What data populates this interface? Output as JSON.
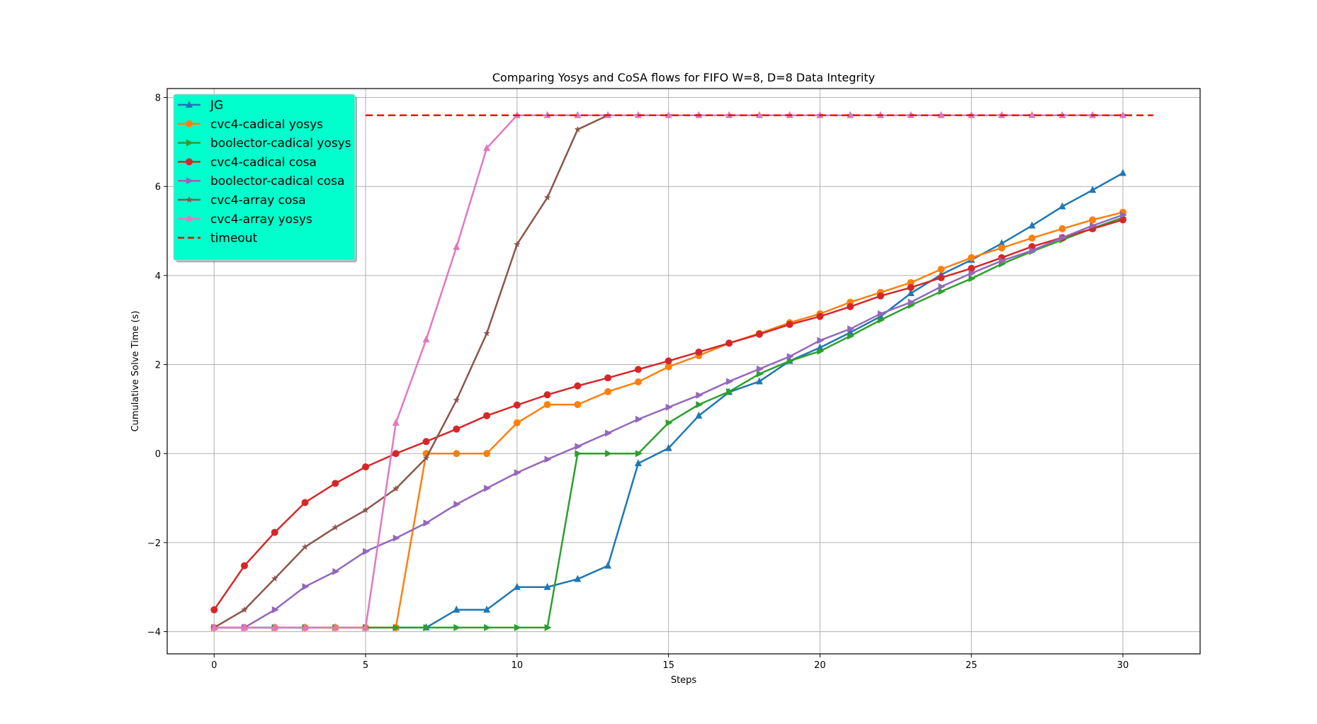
{
  "chart_data": {
    "type": "line",
    "title": "Comparing Yosys and CoSA flows for FIFO W=8, D=8 Data Integrity",
    "xlabel": "Steps",
    "ylabel": "Cumulative Solve Time (s)",
    "xlim": [
      -1.55,
      32.55
    ],
    "ylim": [
      -4.5,
      8.2
    ],
    "xticks": [
      0,
      5,
      10,
      15,
      20,
      25,
      30
    ],
    "yticks": [
      -4,
      -2,
      0,
      2,
      4,
      6,
      8
    ],
    "xtick_labels": [
      "0",
      "5",
      "10",
      "15",
      "20",
      "25",
      "30"
    ],
    "ytick_labels": [
      "−4",
      "−2",
      "0",
      "2",
      "4",
      "6",
      "8"
    ],
    "grid": true,
    "legend_position": "upper-left",
    "legend_background": "#00ffcc",
    "series": [
      {
        "name": "JG",
        "color": "#1f77b4",
        "marker": "triangle-up",
        "x": [
          0,
          1,
          2,
          3,
          4,
          5,
          6,
          7,
          8,
          9,
          10,
          11,
          12,
          13,
          14,
          15,
          16,
          17,
          18,
          19,
          20,
          21,
          22,
          23,
          24,
          25,
          26,
          27,
          28,
          29,
          30
        ],
        "values": [
          -3.91,
          -3.91,
          -3.91,
          -3.91,
          -3.91,
          -3.91,
          -3.91,
          -3.91,
          -3.51,
          -3.51,
          -3.0,
          -3.0,
          -2.82,
          -2.52,
          -0.22,
          0.12,
          0.85,
          1.38,
          1.62,
          2.08,
          2.38,
          2.72,
          3.08,
          3.6,
          4.02,
          4.35,
          4.72,
          5.12,
          5.55,
          5.92,
          6.3
        ]
      },
      {
        "name": "cvc4-cadical yosys",
        "color": "#ff7f0e",
        "marker": "circle",
        "x": [
          0,
          1,
          2,
          3,
          4,
          5,
          6,
          7,
          8,
          9,
          10,
          11,
          12,
          13,
          14,
          15,
          16,
          17,
          18,
          19,
          20,
          21,
          22,
          23,
          24,
          25,
          26,
          27,
          28,
          29,
          30
        ],
        "values": [
          -3.91,
          -3.91,
          -3.91,
          -3.91,
          -3.91,
          -3.91,
          -3.91,
          0.0,
          0.0,
          0.0,
          0.69,
          1.1,
          1.1,
          1.39,
          1.61,
          1.95,
          2.2,
          2.48,
          2.7,
          2.94,
          3.14,
          3.4,
          3.62,
          3.84,
          4.14,
          4.4,
          4.62,
          4.84,
          5.05,
          5.25,
          5.42
        ]
      },
      {
        "name": "boolector-cadical yosys",
        "color": "#2ca02c",
        "marker": "triangle-right",
        "x": [
          0,
          1,
          2,
          3,
          4,
          5,
          6,
          7,
          8,
          9,
          10,
          11,
          12,
          13,
          14,
          15,
          16,
          17,
          18,
          19,
          20,
          21,
          22,
          23,
          24,
          25,
          26,
          27,
          28,
          29,
          30
        ],
        "values": [
          -3.91,
          -3.91,
          -3.91,
          -3.91,
          -3.91,
          -3.91,
          -3.91,
          -3.91,
          -3.91,
          -3.91,
          -3.91,
          -3.91,
          0.0,
          0.0,
          0.0,
          0.69,
          1.1,
          1.39,
          1.79,
          2.08,
          2.3,
          2.64,
          3.0,
          3.33,
          3.64,
          3.93,
          4.26,
          4.54,
          4.8,
          5.06,
          5.3
        ]
      },
      {
        "name": "cvc4-cadical cosa",
        "color": "#d62728",
        "marker": "circle",
        "x": [
          0,
          1,
          2,
          3,
          4,
          5,
          6,
          7,
          8,
          9,
          10,
          11,
          12,
          13,
          14,
          15,
          16,
          17,
          18,
          19,
          20,
          21,
          22,
          23,
          24,
          25,
          26,
          27,
          28,
          29,
          30
        ],
        "values": [
          -3.51,
          -2.52,
          -1.77,
          -1.1,
          -0.67,
          -0.3,
          0.0,
          0.27,
          0.55,
          0.85,
          1.09,
          1.32,
          1.52,
          1.7,
          1.89,
          2.08,
          2.28,
          2.48,
          2.68,
          2.9,
          3.08,
          3.3,
          3.54,
          3.73,
          3.95,
          4.16,
          4.4,
          4.65,
          4.85,
          5.05,
          5.25
        ]
      },
      {
        "name": "boolector-cadical cosa",
        "color": "#9467bd",
        "marker": "triangle-right",
        "x": [
          0,
          1,
          2,
          3,
          4,
          5,
          6,
          7,
          8,
          9,
          10,
          11,
          12,
          13,
          14,
          15,
          16,
          17,
          18,
          19,
          20,
          21,
          22,
          23,
          24,
          25,
          26,
          27,
          28,
          29,
          30
        ],
        "values": [
          -3.91,
          -3.91,
          -3.51,
          -2.99,
          -2.65,
          -2.2,
          -1.9,
          -1.56,
          -1.14,
          -0.78,
          -0.43,
          -0.13,
          0.16,
          0.46,
          0.77,
          1.04,
          1.31,
          1.62,
          1.9,
          2.18,
          2.54,
          2.8,
          3.14,
          3.4,
          3.75,
          4.05,
          4.33,
          4.56,
          4.85,
          5.12,
          5.36
        ]
      },
      {
        "name": "cvc4-array cosa",
        "color": "#8c564b",
        "marker": "star",
        "x": [
          0,
          1,
          2,
          3,
          4,
          5,
          6,
          7,
          8,
          9,
          10,
          11,
          12,
          13,
          14,
          15,
          16,
          17,
          18,
          19,
          20,
          21,
          22,
          23,
          24,
          25,
          26,
          27,
          28,
          29,
          30
        ],
        "values": [
          -3.91,
          -3.51,
          -2.81,
          -2.1,
          -1.66,
          -1.27,
          -0.79,
          -0.1,
          1.2,
          2.7,
          4.7,
          5.75,
          7.28,
          7.6,
          7.6,
          7.6,
          7.6,
          7.6,
          7.6,
          7.6,
          7.6,
          7.6,
          7.6,
          7.6,
          7.6,
          7.6,
          7.6,
          7.6,
          7.6,
          7.6,
          7.6
        ]
      },
      {
        "name": "cvc4-array yosys",
        "color": "#e377c2",
        "marker": "triangle-up",
        "x": [
          0,
          1,
          2,
          3,
          4,
          5,
          6,
          7,
          8,
          9,
          10,
          11,
          12,
          13,
          14,
          15,
          16,
          17,
          18,
          19,
          20,
          21,
          22,
          23,
          24,
          25,
          26,
          27,
          28,
          29,
          30
        ],
        "values": [
          -3.91,
          -3.91,
          -3.91,
          -3.91,
          -3.91,
          -3.91,
          0.69,
          2.56,
          4.64,
          6.86,
          7.6,
          7.6,
          7.6,
          7.6,
          7.6,
          7.6,
          7.6,
          7.6,
          7.6,
          7.6,
          7.6,
          7.6,
          7.6,
          7.6,
          7.6,
          7.6,
          7.6,
          7.6,
          7.6,
          7.6,
          7.6
        ]
      },
      {
        "name": "timeout",
        "color": "#ff0000",
        "marker": "none",
        "style": "dashed",
        "x": [
          5,
          31
        ],
        "values": [
          7.6,
          7.6
        ]
      }
    ]
  }
}
